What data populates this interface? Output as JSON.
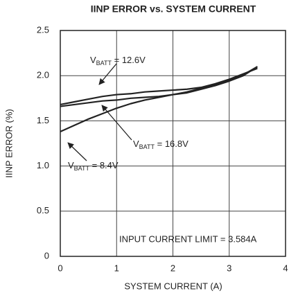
{
  "chart_data": {
    "type": "line",
    "title": "IINP ERROR vs. SYSTEM CURRENT",
    "xlabel": "SYSTEM CURRENT (A)",
    "ylabel": "IINP ERROR (%)",
    "x": [
      0,
      0.25,
      0.5,
      0.75,
      1,
      1.25,
      1.5,
      1.75,
      2,
      2.25,
      2.5,
      2.75,
      3,
      3.25,
      3.5
    ],
    "series": [
      {
        "name": "VBATT = 12.6V",
        "color": "#222222",
        "values": [
          1.68,
          1.71,
          1.74,
          1.77,
          1.79,
          1.8,
          1.82,
          1.83,
          1.84,
          1.85,
          1.87,
          1.91,
          1.96,
          2.02,
          2.08
        ]
      },
      {
        "name": "VBATT = 16.8V",
        "color": "#222222",
        "values": [
          1.66,
          1.68,
          1.7,
          1.72,
          1.73,
          1.75,
          1.76,
          1.77,
          1.79,
          1.81,
          1.85,
          1.89,
          1.94,
          2.0,
          2.1
        ]
      },
      {
        "name": "VBATT = 8.4V",
        "color": "#222222",
        "values": [
          1.38,
          1.45,
          1.52,
          1.58,
          1.64,
          1.69,
          1.73,
          1.76,
          1.79,
          1.82,
          1.86,
          1.9,
          1.95,
          2.01,
          2.1
        ]
      }
    ],
    "annotations": [
      {
        "main": "V",
        "sub": "BATT",
        "rest": " = 12.6V"
      },
      {
        "main": "V",
        "sub": "BATT",
        "rest": " = 16.8V"
      },
      {
        "main": "V",
        "sub": "BATT",
        "rest": " = 8.4V"
      },
      {
        "text": "INPUT CURRENT LIMIT = 3.584A"
      }
    ],
    "xlim": [
      0,
      4
    ],
    "xticks": [
      0,
      1,
      2,
      3,
      4
    ],
    "ylim": [
      0,
      2.5
    ],
    "yticks": [
      0,
      {
        "value": 0.5,
        "label": "0.5"
      },
      {
        "value": 1,
        "label": "1.0"
      },
      {
        "value": 1.5,
        "label": "1.5"
      },
      {
        "value": 2,
        "label": "2.0"
      },
      {
        "value": 2.5,
        "label": "2.5"
      }
    ],
    "grid": true
  }
}
